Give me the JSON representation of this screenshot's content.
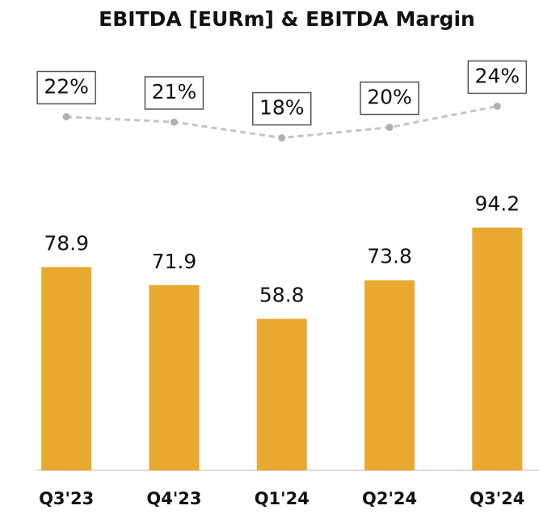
{
  "chart_data": {
    "type": "bar",
    "title": "EBITDA [EURm] & EBITDA Margin",
    "categories": [
      "Q3'23",
      "Q4'23",
      "Q1'24",
      "Q2'24",
      "Q3'24"
    ],
    "series": [
      {
        "type": "bar",
        "color": "#e9a82f",
        "values": [
          78.9,
          71.9,
          58.8,
          73.8,
          94.2
        ]
      },
      {
        "type": "line",
        "axis": "y2",
        "color": "#c4c4c4",
        "values": [
          22,
          21,
          18,
          20,
          24
        ],
        "value_labels": [
          "22%",
          "21%",
          "18%",
          "20%",
          "24%"
        ]
      }
    ],
    "ylim": [
      0,
      170
    ],
    "y2lim": [
      -45,
      38
    ]
  }
}
